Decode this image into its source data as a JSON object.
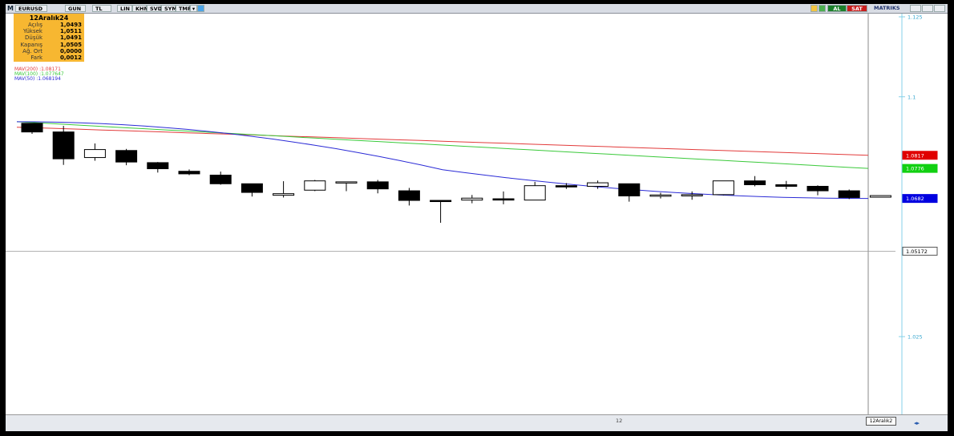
{
  "toolbar": {
    "symbol": "EURUSD",
    "buttons": [
      "GUN",
      "TL",
      "LIN",
      "KHN",
      "SVD",
      "SYM",
      "TMP"
    ],
    "buy_label": "AL",
    "sell_label": "SAT",
    "app_name": "MATRIKS"
  },
  "info_panel": {
    "date": "12Aralık24",
    "rows": [
      {
        "label": "Açılış",
        "value": "1,0493"
      },
      {
        "label": "Yüksek",
        "value": "1,0511"
      },
      {
        "label": "Düşük",
        "value": "1,0491"
      },
      {
        "label": "Kapanış",
        "value": "1,0505"
      },
      {
        "label": "Ağ. Ort",
        "value": "0,0000"
      },
      {
        "label": "Fark",
        "value": "0,0012"
      }
    ]
  },
  "moving_averages": [
    {
      "label": "MAV(200)",
      "value": ":1.08171",
      "color": "#e23b3b"
    },
    {
      "label": "MAV(100)",
      "value": ":1.077647",
      "color": "#3ac93a"
    },
    {
      "label": "MAV(50)",
      "value": ":1.068194",
      "color": "#2b2bd6"
    }
  ],
  "bottom": {
    "axis_label": "12",
    "date_label": "12Aralık2"
  },
  "chart_data": {
    "type": "candlestick",
    "y_ticks": [
      1.125,
      1.1,
      1.025
    ],
    "y_tick_labels": [
      "1.125",
      "1.1",
      "1.025"
    ],
    "price_labels": [
      {
        "value": 1.0817,
        "text": "1.0817",
        "color": "#e00000"
      },
      {
        "value": 1.0776,
        "text": "1.0776",
        "color": "#11d011"
      },
      {
        "value": 1.0682,
        "text": "1.0682",
        "color": "#0000e0"
      },
      {
        "value": 1.05172,
        "text": "1.05172",
        "color": "#ffffff"
      }
    ],
    "ohlc": [
      [
        1.0917,
        1.0917,
        1.0884,
        1.089
      ],
      [
        1.089,
        1.0909,
        1.0787,
        1.0806
      ],
      [
        1.081,
        1.0854,
        1.08,
        1.0835
      ],
      [
        1.0832,
        1.0837,
        1.0786,
        1.0796
      ],
      [
        1.0794,
        1.0796,
        1.0763,
        1.0775
      ],
      [
        1.0767,
        1.0773,
        1.0755,
        1.0759
      ],
      [
        1.0755,
        1.0766,
        1.0725,
        1.0728
      ],
      [
        1.0728,
        1.0728,
        1.0688,
        1.0701
      ],
      [
        1.0692,
        1.0736,
        1.0685,
        1.0697
      ],
      [
        1.0708,
        1.074,
        1.0705,
        1.0737
      ],
      [
        1.0734,
        1.0734,
        1.0705,
        1.0734
      ],
      [
        1.0734,
        1.074,
        1.0698,
        1.0712
      ],
      [
        1.0706,
        1.0715,
        1.066,
        1.0676
      ],
      [
        1.0676,
        1.0676,
        1.0606,
        1.0674
      ],
      [
        1.0677,
        1.0693,
        1.0667,
        1.0683
      ],
      [
        1.0681,
        1.0704,
        1.0664,
        1.0677
      ],
      [
        1.0677,
        1.0734,
        1.0677,
        1.0722
      ],
      [
        1.0722,
        1.073,
        1.0712,
        1.0718
      ],
      [
        1.072,
        1.0738,
        1.0712,
        1.0731
      ],
      [
        1.0728,
        1.0728,
        1.0672,
        1.069
      ],
      [
        1.0689,
        1.07,
        1.0682,
        1.0693
      ],
      [
        1.069,
        1.0704,
        1.0678,
        1.0694
      ],
      [
        1.0694,
        1.0737,
        1.0692,
        1.0737
      ],
      [
        1.0737,
        1.0752,
        1.072,
        1.0725
      ],
      [
        1.0725,
        1.0737,
        1.0711,
        1.072
      ],
      [
        1.072,
        1.0723,
        1.0692,
        1.0706
      ],
      [
        1.0706,
        1.071,
        1.068,
        1.0685
      ],
      [
        1.0686,
        1.0691,
        1.0686,
        1.0691
      ]
    ],
    "ma_series": [
      {
        "name": "MAV(200)",
        "color": "#e23b3b",
        "start": 1.0905,
        "end": 1.0817
      },
      {
        "name": "MAV(100)",
        "color": "#3ac93a",
        "start": 1.0922,
        "end": 1.0776
      },
      {
        "name": "MAV(50)",
        "color": "#2b2bd6",
        "start": 1.0922,
        "end": 1.0682
      }
    ],
    "last_price": 1.05172
  }
}
